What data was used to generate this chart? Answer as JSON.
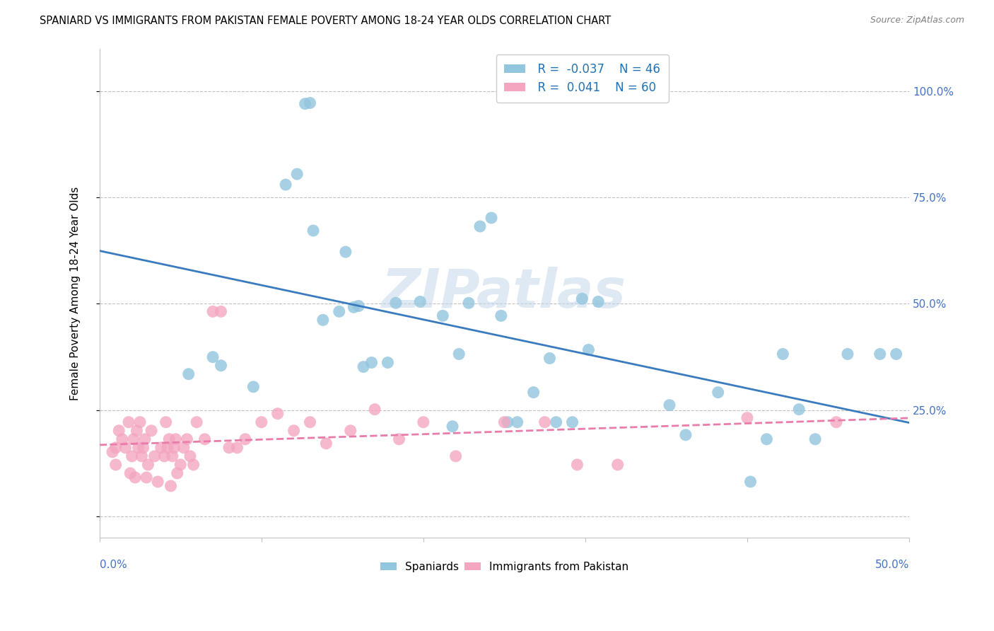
{
  "title": "SPANIARD VS IMMIGRANTS FROM PAKISTAN FEMALE POVERTY AMONG 18-24 YEAR OLDS CORRELATION CHART",
  "source": "Source: ZipAtlas.com",
  "ylabel": "Female Poverty Among 18-24 Year Olds",
  "xlim": [
    0.0,
    0.5
  ],
  "ylim": [
    -0.05,
    1.1
  ],
  "spaniards_R": -0.037,
  "spaniards_N": 46,
  "pakistan_R": 0.041,
  "pakistan_N": 60,
  "blue_color": "#92c5de",
  "pink_color": "#f4a6c0",
  "blue_line_color": "#3a7bbf",
  "pink_line_color": "#e87dab",
  "watermark_zip": "ZIP",
  "watermark_atlas": "atlas",
  "spaniards_x": [
    0.055,
    0.075,
    0.07,
    0.095,
    0.115,
    0.122,
    0.127,
    0.13,
    0.132,
    0.138,
    0.148,
    0.152,
    0.157,
    0.16,
    0.163,
    0.168,
    0.178,
    0.183,
    0.198,
    0.212,
    0.218,
    0.222,
    0.228,
    0.235,
    0.242,
    0.248,
    0.252,
    0.258,
    0.268,
    0.278,
    0.282,
    0.292,
    0.298,
    0.302,
    0.308,
    0.352,
    0.362,
    0.382,
    0.402,
    0.412,
    0.422,
    0.432,
    0.442,
    0.462,
    0.482,
    0.492
  ],
  "spaniards_y": [
    0.335,
    0.355,
    0.375,
    0.305,
    0.78,
    0.805,
    0.97,
    0.972,
    0.672,
    0.462,
    0.482,
    0.622,
    0.492,
    0.495,
    0.352,
    0.362,
    0.362,
    0.502,
    0.505,
    0.472,
    0.212,
    0.382,
    0.502,
    0.682,
    0.702,
    0.472,
    0.222,
    0.222,
    0.292,
    0.372,
    0.222,
    0.222,
    0.512,
    0.392,
    0.505,
    0.262,
    0.192,
    0.292,
    0.082,
    0.182,
    0.382,
    0.252,
    0.182,
    0.382,
    0.382,
    0.382
  ],
  "pakistan_x": [
    0.008,
    0.01,
    0.012,
    0.014,
    0.016,
    0.018,
    0.019,
    0.02,
    0.021,
    0.022,
    0.023,
    0.024,
    0.025,
    0.026,
    0.027,
    0.028,
    0.029,
    0.03,
    0.032,
    0.034,
    0.036,
    0.038,
    0.04,
    0.041,
    0.042,
    0.043,
    0.044,
    0.045,
    0.046,
    0.047,
    0.048,
    0.05,
    0.052,
    0.054,
    0.056,
    0.058,
    0.06,
    0.065,
    0.07,
    0.075,
    0.08,
    0.085,
    0.09,
    0.1,
    0.11,
    0.12,
    0.13,
    0.14,
    0.155,
    0.17,
    0.185,
    0.2,
    0.22,
    0.25,
    0.275,
    0.295,
    0.32,
    0.4,
    0.455,
    0.01
  ],
  "pakistan_y": [
    0.152,
    0.122,
    0.202,
    0.182,
    0.162,
    0.222,
    0.102,
    0.142,
    0.182,
    0.092,
    0.202,
    0.162,
    0.222,
    0.142,
    0.162,
    0.182,
    0.092,
    0.122,
    0.202,
    0.142,
    0.082,
    0.162,
    0.142,
    0.222,
    0.162,
    0.182,
    0.072,
    0.142,
    0.162,
    0.182,
    0.102,
    0.122,
    0.162,
    0.182,
    0.142,
    0.122,
    0.222,
    0.182,
    0.482,
    0.482,
    0.162,
    0.162,
    0.182,
    0.222,
    0.242,
    0.202,
    0.222,
    0.172,
    0.202,
    0.252,
    0.182,
    0.222,
    0.142,
    0.222,
    0.222,
    0.122,
    0.122,
    0.232,
    0.222,
    0.162
  ]
}
